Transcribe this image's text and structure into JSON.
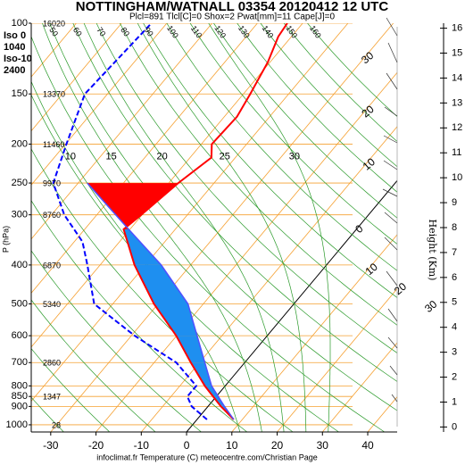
{
  "chart_data": {
    "type": "skewt",
    "title": "NOTTINGHAM/WATNALL 03354 20120412 12 UTC",
    "subtitle": "Plcl=891 Tlcl[C]=0 Shox=2 Pwat[mm]=11 Cape[J]=0",
    "xlabel": "infoclimat.fr Temperature (C) meteocentre.com/Christian Page",
    "ylabel": "P (hPa)",
    "y2label": "Height (Km)",
    "annotations": [
      "Iso 0",
      "1040",
      "Iso-10",
      "2400"
    ],
    "log_y": true,
    "xlim": [
      -34.3,
      46.5
    ],
    "xticks": [
      -30,
      -20,
      -10,
      0,
      10,
      20,
      30,
      40
    ],
    "ylim": [
      1042,
      100
    ],
    "yticks": [
      100,
      150,
      200,
      250,
      300,
      400,
      500,
      600,
      700,
      800,
      850,
      900,
      1000
    ],
    "heights": [
      16020,
      13370,
      11460,
      9970,
      8760,
      6870,
      5340,
      null,
      2860,
      null,
      1347,
      null,
      28
    ],
    "y2lim": [
      -0.2,
      16.2
    ],
    "y2ticks": [
      0,
      1,
      2,
      3,
      4,
      5,
      6,
      7,
      8,
      9,
      10,
      11,
      12,
      13,
      14,
      15,
      16
    ],
    "isotherm_labels": [
      {
        "value": -30,
        "label": "30"
      },
      {
        "value": -20,
        "label": "20"
      },
      {
        "value": -10,
        "label": "10"
      },
      0,
      10,
      20,
      30
    ],
    "dry_adiabat_labels": [
      50,
      60,
      70,
      80,
      90,
      100,
      110,
      120,
      130,
      140,
      150,
      160
    ],
    "moist_adiabat_labels": [
      10,
      15,
      20,
      25,
      30
    ],
    "series": [
      {
        "color": "#ff0000",
        "dash": false,
        "pressure": [
          970,
          898,
          800,
          700,
          600,
          500,
          400,
          326,
          300,
          250,
          216,
          200,
          171,
          150,
          125,
          108,
          100
        ],
        "values": [
          8.1,
          2.7,
          -4.5,
          -11.9,
          -20.1,
          -30.9,
          -42.4,
          -51.4,
          -50.2,
          -47.9,
          -45.3,
          -47.7,
          -47.2,
          -48.5,
          -50.5,
          -52.9,
          -53.4
        ]
      },
      {
        "color": "#0000ff",
        "dash": true,
        "pressure": [
          970,
          900,
          850,
          800,
          700,
          600,
          500,
          400,
          350,
          300,
          250,
          200,
          150,
          100
        ],
        "values": [
          2.2,
          -3.6,
          -6.4,
          -6.4,
          -15.1,
          -29.3,
          -44.1,
          -52.8,
          -58.2,
          -67.2,
          -75.5,
          -79.8,
          -85,
          -83.4
        ]
      },
      {
        "color": "#5050ff",
        "dash": false,
        "fill": true,
        "pressure": [
          970,
          898,
          800,
          700,
          600,
          500,
          400,
          326,
          250
        ],
        "values": [
          8.1,
          3.5,
          -3,
          -8.8,
          -15.5,
          -23.4,
          -36.5,
          -50.3,
          -68
        ]
      }
    ]
  }
}
